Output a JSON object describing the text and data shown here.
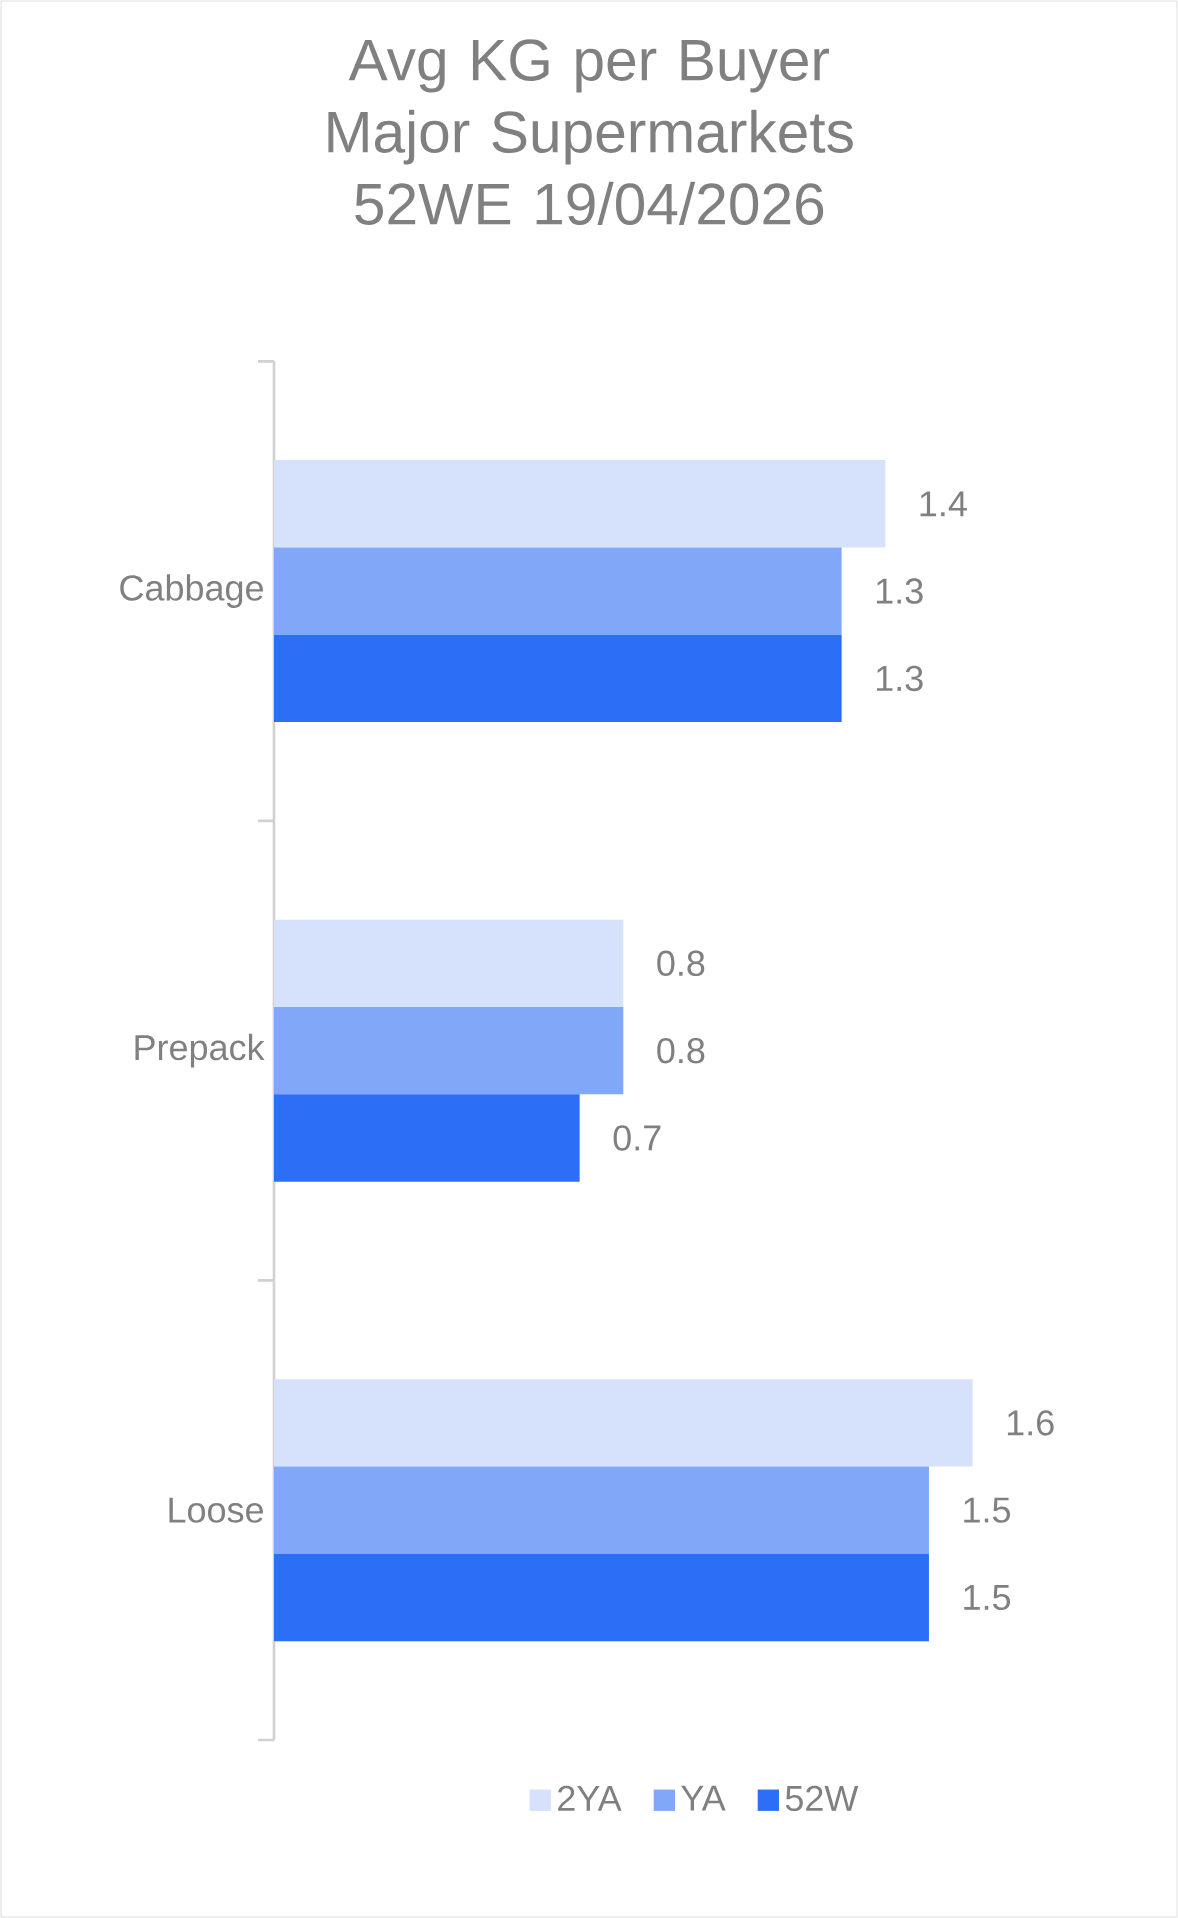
{
  "chart_data": {
    "type": "bar",
    "orientation": "horizontal",
    "title": "Avg KG per Buyer Major Supermarkets 52WE 19/04/2026",
    "categories": [
      "Cabbage",
      "Prepack",
      "Loose"
    ],
    "series": [
      {
        "name": "2YA",
        "color": "#d6e2fb",
        "values": [
          1.4,
          0.8,
          1.6
        ]
      },
      {
        "name": "YA",
        "color": "#80a7f8",
        "values": [
          1.3,
          0.8,
          1.5
        ]
      },
      {
        "name": "52W",
        "color": "#2c6ef5",
        "values": [
          1.3,
          0.7,
          1.5
        ]
      }
    ],
    "data_labels": true,
    "legend": "bottom"
  }
}
